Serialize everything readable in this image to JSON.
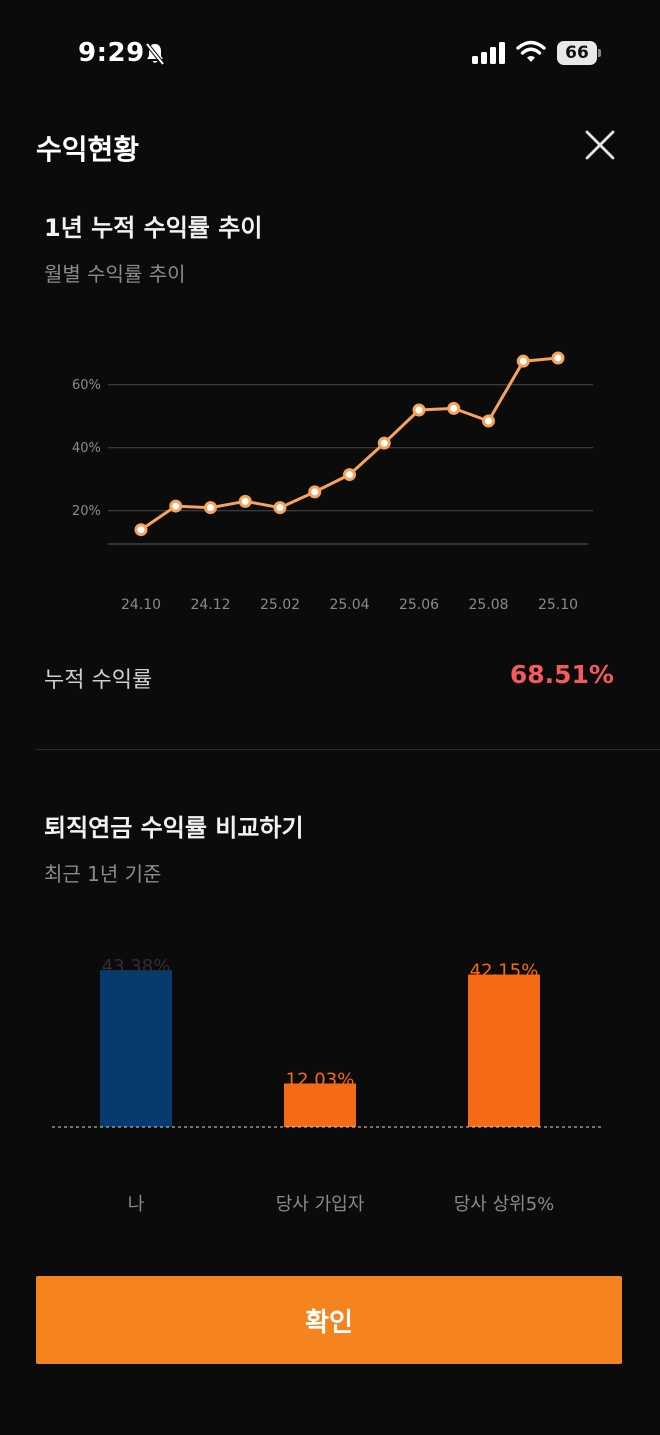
{
  "status_bar": {
    "time": "9:29",
    "battery": "66"
  },
  "header": {
    "title": "수익현황"
  },
  "trend_section": {
    "title": "1년 누적 수익률 추이",
    "subtitle": "월별 수익률 추이",
    "cumulative_label": "누적 수익률",
    "cumulative_value": "68.51%",
    "cumulative_color": "#f25b5b"
  },
  "compare_section": {
    "title": "퇴직연금 수익률 비교하기",
    "subtitle": "최근 1년 기준"
  },
  "confirm_button": {
    "label": "확인",
    "color": "#f5841f"
  },
  "chart_data": [
    {
      "type": "line",
      "x": [
        "24.10",
        "24.11",
        "24.12",
        "25.01",
        "25.02",
        "25.03",
        "25.04",
        "25.05",
        "25.06",
        "25.07",
        "25.08",
        "25.09",
        "25.10"
      ],
      "x_tick_labels": [
        "24.10",
        "24.12",
        "25.02",
        "25.04",
        "25.06",
        "25.08",
        "25.10"
      ],
      "series": [
        {
          "values": [
            14,
            21.5,
            21,
            23,
            21,
            26,
            31.5,
            41.5,
            52,
            52.5,
            48.5,
            67.5,
            68.5
          ],
          "color": "#f7a35c"
        }
      ],
      "y_ticks": [
        20,
        40,
        60
      ],
      "y_tick_labels": [
        "20%",
        "40%",
        "60%"
      ],
      "ylim": [
        12,
        72
      ],
      "grid": true
    },
    {
      "type": "bar",
      "categories": [
        "나",
        "당사 가입자",
        "당사 상위5%"
      ],
      "values": [
        43.38,
        12.03,
        42.15
      ],
      "value_labels": [
        "43.38%",
        "12.03%",
        "42.15%"
      ],
      "colors": [
        "#073a6e",
        "#f56a14",
        "#f56a14"
      ],
      "label_colors": [
        "#2f2f2f",
        "#f56a14",
        "#f56a14"
      ],
      "ylim": [
        0,
        47
      ]
    }
  ]
}
